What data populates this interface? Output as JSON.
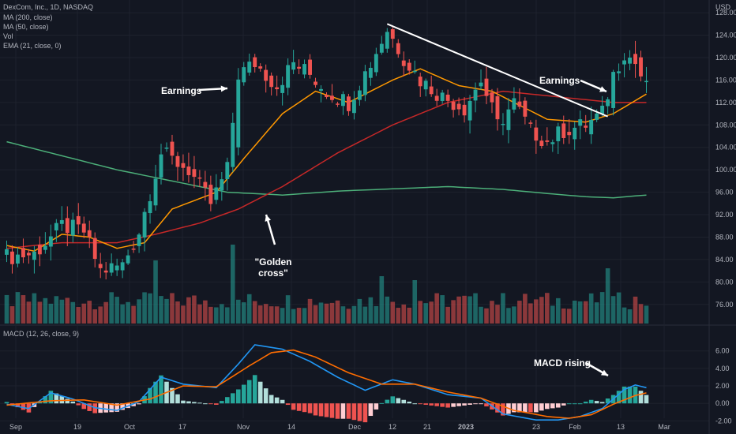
{
  "legend": {
    "title": "DexCom, Inc., 1D, NASDAQ",
    "ma200": "MA (200, close)",
    "ma50": "MA (50, close)",
    "vol": "Vol",
    "ema21": "EMA (21, close, 0)",
    "macd": "MACD (12, 26, close, 9)"
  },
  "colors": {
    "background": "#131722",
    "up": "#26a69a",
    "down": "#ef5350",
    "ma200": "#4caf79",
    "ma50": "#c62828",
    "ema21": "#ff9800",
    "macd": "#2196f3",
    "signal": "#ff6d00",
    "trendline": "#ffffff"
  },
  "annotations": {
    "earnings_1": "Earnings",
    "earnings_2": "Earnings",
    "golden_cross": "\"Golden cross\"",
    "macd_rising": "MACD rising"
  },
  "chart_data": [
    {
      "type": "candlestick",
      "title": "DexCom, Inc., 1D, NASDAQ",
      "currency": "USD",
      "ylim": [
        74,
        129
      ],
      "y_ticks": [
        "128.00",
        "124.00",
        "120.00",
        "116.00",
        "112.00",
        "108.00",
        "104.00",
        "100.00",
        "96.00",
        "92.00",
        "88.00",
        "84.00",
        "80.00",
        "76.00"
      ],
      "x_ticks": [
        "Sep",
        "19",
        "Oct",
        "17",
        "Nov",
        "14",
        "Dec",
        "12",
        "21",
        "2023",
        "23",
        "Feb",
        "13",
        "Mar"
      ],
      "close_anchors": [
        {
          "i": 0,
          "c": 84.5
        },
        {
          "i": 5,
          "c": 85
        },
        {
          "i": 10,
          "c": 90
        },
        {
          "i": 14,
          "c": 89
        },
        {
          "i": 17,
          "c": 82
        },
        {
          "i": 21,
          "c": 83
        },
        {
          "i": 24,
          "c": 89
        },
        {
          "i": 28,
          "c": 103
        },
        {
          "i": 33,
          "c": 100
        },
        {
          "i": 37,
          "c": 94
        },
        {
          "i": 40,
          "c": 100
        },
        {
          "i": 42,
          "c": 117
        },
        {
          "i": 45,
          "c": 119
        },
        {
          "i": 49,
          "c": 115
        },
        {
          "i": 52,
          "c": 119
        },
        {
          "i": 55,
          "c": 117
        },
        {
          "i": 58,
          "c": 114
        },
        {
          "i": 62,
          "c": 112
        },
        {
          "i": 66,
          "c": 119
        },
        {
          "i": 69,
          "c": 125
        },
        {
          "i": 72,
          "c": 120
        },
        {
          "i": 75,
          "c": 116
        },
        {
          "i": 79,
          "c": 113
        },
        {
          "i": 83,
          "c": 111
        },
        {
          "i": 86,
          "c": 116
        },
        {
          "i": 89,
          "c": 108
        },
        {
          "i": 92,
          "c": 112
        },
        {
          "i": 95,
          "c": 107
        },
        {
          "i": 98,
          "c": 105
        },
        {
          "i": 101,
          "c": 107
        },
        {
          "i": 105,
          "c": 108
        },
        {
          "i": 108,
          "c": 110
        },
        {
          "i": 110,
          "c": 117
        },
        {
          "i": 112,
          "c": 121
        },
        {
          "i": 114,
          "c": 119
        },
        {
          "i": 116,
          "c": 114.5
        }
      ],
      "series": [
        {
          "name": "MA (200, close)",
          "points": [
            [
              0,
              105
            ],
            [
              20,
              100
            ],
            [
              40,
              96
            ],
            [
              50,
              95.5
            ],
            [
              60,
              96.2
            ],
            [
              80,
              97
            ],
            [
              90,
              96.5
            ],
            [
              100,
              95.6
            ],
            [
              105,
              95.2
            ],
            [
              110,
              95
            ],
            [
              116,
              95.5
            ]
          ]
        },
        {
          "name": "MA (50, close)",
          "points": [
            [
              0,
              86
            ],
            [
              10,
              87
            ],
            [
              20,
              87
            ],
            [
              27,
              88.5
            ],
            [
              35,
              90.5
            ],
            [
              42,
              93
            ],
            [
              50,
              97
            ],
            [
              60,
              103
            ],
            [
              70,
              108
            ],
            [
              80,
              112
            ],
            [
              90,
              114
            ],
            [
              100,
              113
            ],
            [
              110,
              112
            ],
            [
              116,
              112
            ]
          ]
        },
        {
          "name": "EMA (21, close, 0)",
          "points": [
            [
              0,
              86.5
            ],
            [
              5,
              85.5
            ],
            [
              10,
              88.5
            ],
            [
              15,
              88
            ],
            [
              20,
              86
            ],
            [
              25,
              87
            ],
            [
              30,
              93
            ],
            [
              38,
              96
            ],
            [
              43,
              102
            ],
            [
              50,
              110
            ],
            [
              56,
              114
            ],
            [
              62,
              112
            ],
            [
              70,
              116
            ],
            [
              75,
              118
            ],
            [
              82,
              115
            ],
            [
              88,
              114
            ],
            [
              92,
              112
            ],
            [
              98,
              109
            ],
            [
              105,
              108.5
            ],
            [
              110,
              110
            ],
            [
              116,
              113.5
            ]
          ]
        }
      ],
      "trendline": {
        "from": [
          69,
          126
        ],
        "to": [
          109,
          109.5
        ]
      }
    },
    {
      "type": "bar",
      "title": "Vol",
      "note": "volume colored by candle direction",
      "peaks": [
        {
          "i": 27,
          "rel": 0.8
        },
        {
          "i": 41,
          "rel": 1.0
        },
        {
          "i": 68,
          "rel": 0.6
        },
        {
          "i": 74,
          "rel": 0.55
        },
        {
          "i": 109,
          "rel": 0.7
        }
      ]
    },
    {
      "type": "line",
      "title": "MACD (12, 26, close, 9)",
      "ylim": [
        -2.6,
        7.6
      ],
      "y_ticks": [
        "6.00",
        "4.00",
        "2.00",
        "0.00",
        "-2.00"
      ],
      "series": [
        {
          "name": "MACD",
          "points": [
            [
              0,
              -0.1
            ],
            [
              4,
              -0.6
            ],
            [
              8,
              1.2
            ],
            [
              12,
              0.5
            ],
            [
              16,
              -0.5
            ],
            [
              20,
              -0.8
            ],
            [
              24,
              0.2
            ],
            [
              28,
              3.0
            ],
            [
              32,
              2.2
            ],
            [
              38,
              1.8
            ],
            [
              42,
              4.5
            ],
            [
              45,
              6.7
            ],
            [
              50,
              6.2
            ],
            [
              55,
              4.8
            ],
            [
              60,
              3.0
            ],
            [
              65,
              1.5
            ],
            [
              70,
              2.7
            ],
            [
              74,
              2.2
            ],
            [
              80,
              1.0
            ],
            [
              86,
              0.6
            ],
            [
              90,
              -1.2
            ],
            [
              96,
              -1.9
            ],
            [
              100,
              -1.9
            ],
            [
              104,
              -1.5
            ],
            [
              108,
              -0.6
            ],
            [
              112,
              1.6
            ],
            [
              114,
              2.1
            ],
            [
              116,
              1.8
            ]
          ]
        },
        {
          "name": "Signal",
          "points": [
            [
              0,
              -0.2
            ],
            [
              8,
              0.3
            ],
            [
              14,
              0.4
            ],
            [
              20,
              -0.2
            ],
            [
              26,
              0.5
            ],
            [
              32,
              2.0
            ],
            [
              38,
              1.9
            ],
            [
              44,
              4.3
            ],
            [
              48,
              5.8
            ],
            [
              52,
              6.1
            ],
            [
              56,
              5.3
            ],
            [
              62,
              3.5
            ],
            [
              68,
              2.2
            ],
            [
              74,
              2.2
            ],
            [
              80,
              1.3
            ],
            [
              86,
              0.6
            ],
            [
              92,
              -0.8
            ],
            [
              98,
              -1.5
            ],
            [
              102,
              -1.7
            ],
            [
              106,
              -1.3
            ],
            [
              110,
              -0.1
            ],
            [
              114,
              0.9
            ],
            [
              116,
              1.2
            ]
          ]
        }
      ]
    }
  ]
}
